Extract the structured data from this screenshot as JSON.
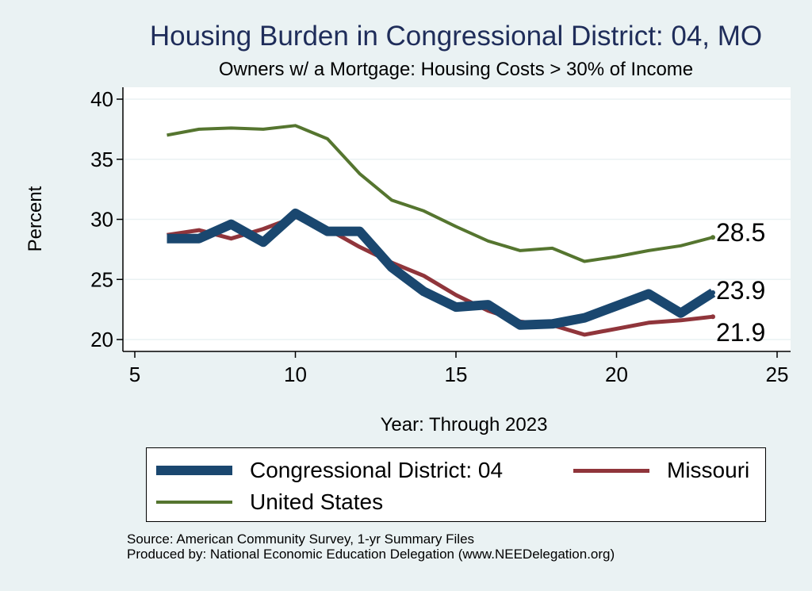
{
  "header": {
    "title": "Housing Burden in Congressional District:  04, MO",
    "subtitle": "Owners w/ a Mortgage: Housing Costs > 30% of Income"
  },
  "chart_data": {
    "type": "line",
    "title": "Housing Burden in Congressional District:  04, MO",
    "subtitle": "Owners w/ a Mortgage: Housing Costs > 30% of Income",
    "xlabel": "Year: Through 2023",
    "ylabel": "Percent",
    "xlim": [
      5,
      25
    ],
    "ylim": [
      20,
      40
    ],
    "xticks": [
      5,
      10,
      15,
      20,
      25
    ],
    "yticks": [
      20,
      25,
      30,
      35,
      40
    ],
    "grid": "horizontal",
    "legend_position": "bottom",
    "series": [
      {
        "name": "Congressional District:  04",
        "color": "#1a476f",
        "x": [
          6,
          7,
          8,
          9,
          10,
          11,
          12,
          13,
          14,
          15,
          16,
          17,
          18,
          19,
          20,
          21,
          22,
          23
        ],
        "y": [
          28.4,
          28.4,
          29.6,
          28.1,
          30.5,
          29.0,
          29.0,
          26.0,
          24.0,
          22.7,
          22.9,
          21.2,
          21.3,
          21.8,
          22.8,
          23.8,
          22.2,
          23.9
        ],
        "end_label": "23.9"
      },
      {
        "name": "Missouri",
        "color": "#90353b",
        "x": [
          6,
          7,
          8,
          9,
          10,
          11,
          12,
          13,
          14,
          15,
          16,
          17,
          18,
          19,
          20,
          21,
          22,
          23
        ],
        "y": [
          28.7,
          29.1,
          28.4,
          29.2,
          30.2,
          29.2,
          27.7,
          26.4,
          25.3,
          23.7,
          22.4,
          21.5,
          21.2,
          20.4,
          20.9,
          21.4,
          21.6,
          21.9
        ],
        "end_label": "21.9"
      },
      {
        "name": "United States",
        "color": "#55752f",
        "x": [
          6,
          7,
          8,
          9,
          10,
          11,
          12,
          13,
          14,
          15,
          16,
          17,
          18,
          19,
          20,
          21,
          22,
          23
        ],
        "y": [
          37.0,
          37.5,
          37.6,
          37.5,
          37.8,
          36.7,
          33.8,
          31.6,
          30.7,
          29.4,
          28.2,
          27.4,
          27.6,
          26.5,
          26.9,
          27.4,
          27.8,
          28.5
        ],
        "end_label": "28.5"
      }
    ]
  },
  "legend": {
    "items": [
      {
        "label": "Congressional District:  04",
        "color": "#1a476f"
      },
      {
        "label": "Missouri",
        "color": "#90353b"
      },
      {
        "label": "United States",
        "color": "#55752f"
      }
    ]
  },
  "footer": {
    "source": "Source: American Community Survey, 1-yr Summary Files",
    "produced_by": "Produced by: National Economic Education Delegation (www.NEEDelegation.org)"
  }
}
